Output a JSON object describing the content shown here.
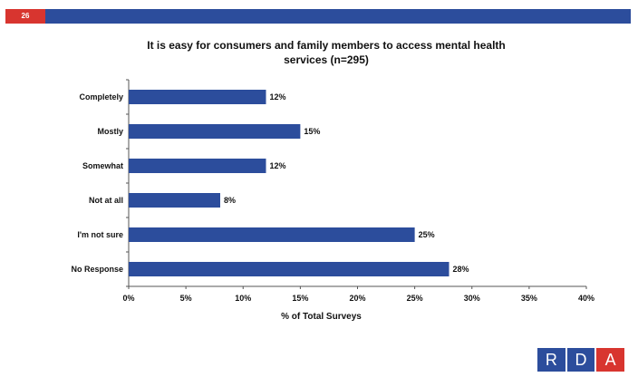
{
  "header": {
    "slide_number": "26"
  },
  "chart_data": {
    "type": "bar",
    "orientation": "horizontal",
    "title_main": "It is easy for consumers and family members to access mental health",
    "title_cont": "services (n=295)",
    "categories": [
      "Completely",
      "Mostly",
      "Somewhat",
      "Not at all",
      "I'm not sure",
      "No Response"
    ],
    "values": [
      12,
      15,
      12,
      8,
      25,
      28
    ],
    "value_labels": [
      "12%",
      "15%",
      "12%",
      "8%",
      "25%",
      "28%"
    ],
    "xlabel": "% of Total Surveys",
    "xlim": [
      0,
      40
    ],
    "xticks": [
      "0%",
      "5%",
      "10%",
      "15%",
      "20%",
      "25%",
      "30%",
      "35%",
      "40%"
    ],
    "grid": false,
    "bar_color": "#2c4d9c"
  },
  "logo": {
    "letters": [
      "R",
      "D",
      "A"
    ]
  }
}
